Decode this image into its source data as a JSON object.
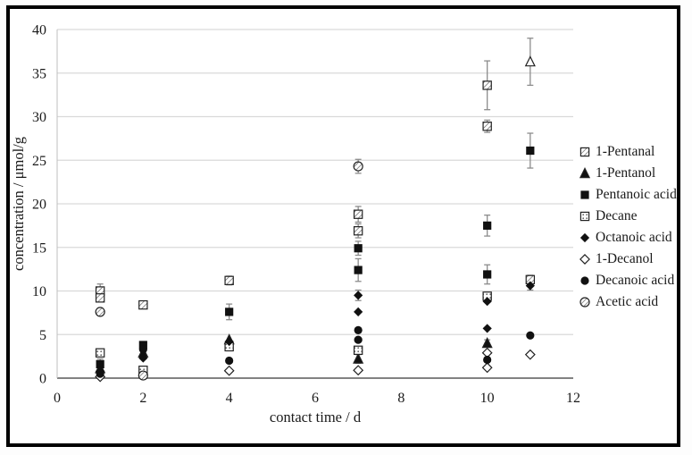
{
  "figure": {
    "background": "#ffffff",
    "frame_color": "#000000",
    "grid_color": "#d9d9d9",
    "axis_color": "#7f7f7f",
    "errorbar_color": "#8c8c8c",
    "marker_color": "#111111"
  },
  "chart_data": {
    "type": "scatter",
    "title": "",
    "xlabel": "contact time / d",
    "ylabel": "concentration / μmol/g",
    "xlim": [
      0,
      12
    ],
    "ylim": [
      0,
      40
    ],
    "xticks": [
      0,
      2,
      4,
      6,
      8,
      10,
      12
    ],
    "yticks": [
      0,
      5,
      10,
      15,
      20,
      25,
      30,
      35,
      40
    ],
    "grid": "horizontal",
    "legend_position": "right",
    "series": [
      {
        "name": "1-Pentanal",
        "marker": "square-hatch",
        "points": [
          {
            "x": 1,
            "y": 10.0,
            "err": 0.8
          },
          {
            "x": 1,
            "y": 9.2,
            "err": 0.4
          },
          {
            "x": 2,
            "y": 8.4
          },
          {
            "x": 4,
            "y": 11.2,
            "err": 0.5
          },
          {
            "x": 7,
            "y": 18.8,
            "err": 0.9
          },
          {
            "x": 7,
            "y": 16.9,
            "err": 0.8
          },
          {
            "x": 10,
            "y": 33.6,
            "err": 2.8
          },
          {
            "x": 10,
            "y": 28.9,
            "err": 0.7
          },
          {
            "x": 11,
            "y": 11.3,
            "err": 0.5
          }
        ]
      },
      {
        "name": "1-Pentanol",
        "marker": "triangle-fill",
        "points": [
          {
            "x": 1,
            "y": 1.1
          },
          {
            "x": 2,
            "y": 2.9
          },
          {
            "x": 4,
            "y": 4.4
          },
          {
            "x": 7,
            "y": 2.2,
            "err": 0.5
          },
          {
            "x": 10,
            "y": 4.0,
            "err": 0.4
          },
          {
            "x": 11,
            "y": 36.3,
            "err": 2.7,
            "open": true
          }
        ]
      },
      {
        "name": "Pentanoic acid",
        "marker": "square-fill",
        "points": [
          {
            "x": 1,
            "y": 1.6,
            "err": 0.6
          },
          {
            "x": 2,
            "y": 3.8
          },
          {
            "x": 4,
            "y": 7.6,
            "err": 0.9
          },
          {
            "x": 7,
            "y": 14.9,
            "err": 0.8
          },
          {
            "x": 7,
            "y": 12.4,
            "err": 1.3
          },
          {
            "x": 10,
            "y": 17.5,
            "err": 1.2
          },
          {
            "x": 10,
            "y": 11.9,
            "err": 1.1
          },
          {
            "x": 11,
            "y": 26.1,
            "err": 2.0
          }
        ]
      },
      {
        "name": "Decane",
        "marker": "square-dot",
        "points": [
          {
            "x": 1,
            "y": 2.9
          },
          {
            "x": 2,
            "y": 0.9
          },
          {
            "x": 4,
            "y": 3.6
          },
          {
            "x": 7,
            "y": 3.2
          },
          {
            "x": 10,
            "y": 9.4
          }
        ]
      },
      {
        "name": "Octanoic acid",
        "marker": "diamond-fill",
        "points": [
          {
            "x": 1,
            "y": 0.8
          },
          {
            "x": 2,
            "y": 2.3
          },
          {
            "x": 4,
            "y": 4.2
          },
          {
            "x": 7,
            "y": 9.5,
            "err": 0.6
          },
          {
            "x": 7,
            "y": 7.6
          },
          {
            "x": 10,
            "y": 8.8
          },
          {
            "x": 10,
            "y": 5.7
          },
          {
            "x": 11,
            "y": 10.6,
            "err": 0.5
          }
        ]
      },
      {
        "name": "1-Decanol",
        "marker": "diamond-open",
        "points": [
          {
            "x": 1,
            "y": 0.15
          },
          {
            "x": 4,
            "y": 0.85
          },
          {
            "x": 7,
            "y": 0.9
          },
          {
            "x": 10,
            "y": 2.9
          },
          {
            "x": 10,
            "y": 1.2
          },
          {
            "x": 11,
            "y": 2.7
          }
        ]
      },
      {
        "name": "Decanoic acid",
        "marker": "circle-fill",
        "points": [
          {
            "x": 1,
            "y": 0.5
          },
          {
            "x": 2,
            "y": 3.3
          },
          {
            "x": 4,
            "y": 2.0
          },
          {
            "x": 7,
            "y": 5.5
          },
          {
            "x": 7,
            "y": 4.4
          },
          {
            "x": 10,
            "y": 2.1
          },
          {
            "x": 11,
            "y": 4.9
          }
        ]
      },
      {
        "name": "Acetic acid",
        "marker": "circle-hatch",
        "points": [
          {
            "x": 1,
            "y": 7.6
          },
          {
            "x": 2,
            "y": 0.3
          },
          {
            "x": 7,
            "y": 24.3,
            "err": 0.8
          }
        ]
      }
    ]
  }
}
